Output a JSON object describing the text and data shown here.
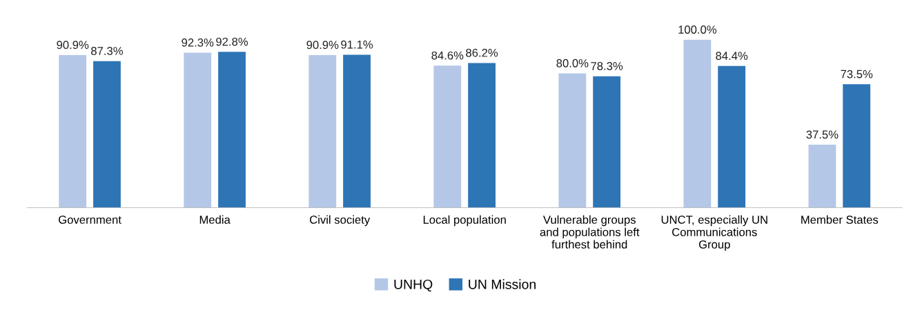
{
  "chart_data": {
    "type": "bar",
    "categories": [
      "Government",
      "Media",
      "Civil society",
      "Local population",
      "Vulnerable groups\nand populations left\nfurthest behind",
      "UNCT, especially UN\nCommunications\nGroup",
      "Member States"
    ],
    "series": [
      {
        "name": "UNHQ",
        "color": "#b4c7e7",
        "values": [
          90.9,
          92.3,
          90.9,
          84.6,
          80.0,
          100.0,
          37.5
        ],
        "value_labels": [
          "90.9%",
          "92.3%",
          "90.9%",
          "84.6%",
          "80.0%",
          "100.0%",
          "37.5%"
        ]
      },
      {
        "name": "UN Mission",
        "color": "#2e75b6",
        "values": [
          87.3,
          92.8,
          91.1,
          86.2,
          78.3,
          84.4,
          73.5
        ],
        "value_labels": [
          "87.3%",
          "92.8%",
          "91.1%",
          "86.2%",
          "78.3%",
          "84.4%",
          "73.5%"
        ]
      }
    ],
    "legend": "bottom",
    "grid": false
  }
}
